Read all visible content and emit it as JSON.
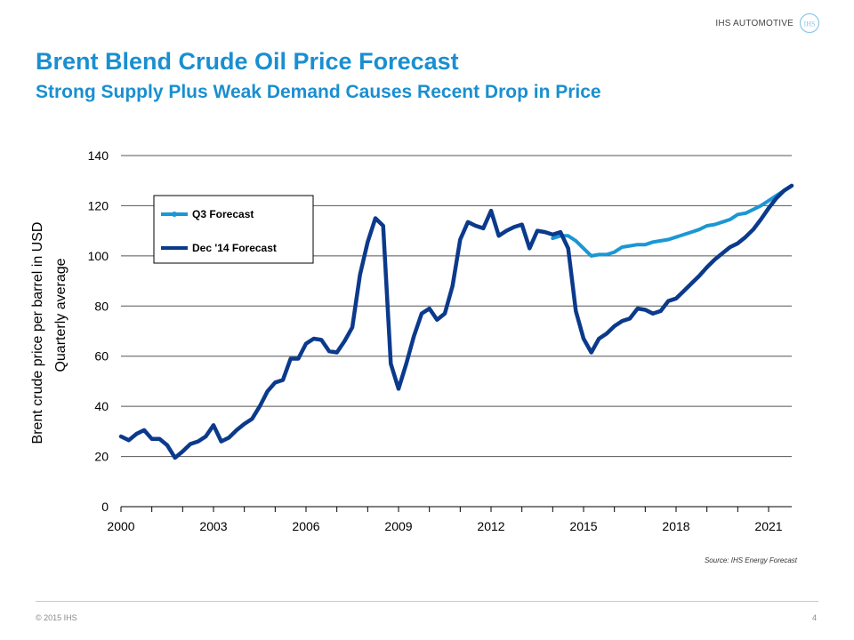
{
  "header": {
    "brand": "IHS AUTOMOTIVE",
    "logo_text": "IHS",
    "title": "Brent Blend Crude Oil Price Forecast",
    "subtitle": "Strong Supply Plus Weak Demand Causes Recent Drop in Price"
  },
  "footer": {
    "copyright": "© 2015 IHS",
    "page_number": "4",
    "source": "Source: IHS Energy Forecast"
  },
  "colors": {
    "brand_blue": "#1a8fd0",
    "q3_series": "#1b97d4",
    "dec14_series": "#0b3a8c",
    "gridline": "#555555"
  },
  "chart_data": {
    "type": "line",
    "title": "",
    "xlabel": "",
    "ylabel": [
      "Brent crude price per barrel in USD",
      "Quarterly average"
    ],
    "xlim": [
      2000,
      2021.75
    ],
    "ylim": [
      0,
      140
    ],
    "y_ticks": [
      0,
      20,
      40,
      60,
      80,
      100,
      120,
      140
    ],
    "x_tick_labels": [
      "2000",
      "2003",
      "2006",
      "2009",
      "2012",
      "2015",
      "2018",
      "2021"
    ],
    "grid": true,
    "legend_position": "top-left",
    "series": [
      {
        "name": "Q3 Forecast",
        "color": "#1b97d4",
        "x": [
          2014.0,
          2014.25,
          2014.5,
          2014.75,
          2015.0,
          2015.25,
          2015.5,
          2015.75,
          2016.0,
          2016.25,
          2016.5,
          2016.75,
          2017.0,
          2017.25,
          2017.5,
          2017.75,
          2018.0,
          2018.25,
          2018.5,
          2018.75,
          2019.0,
          2019.25,
          2019.5,
          2019.75,
          2020.0,
          2020.25,
          2020.5,
          2020.75,
          2021.0,
          2021.25,
          2021.5,
          2021.75
        ],
        "y": [
          107,
          108,
          108,
          106,
          103,
          100,
          100.5,
          100.5,
          101.5,
          103.5,
          104,
          104.5,
          104.5,
          105.5,
          106,
          106.5,
          107.5,
          108.5,
          109.5,
          110.5,
          112,
          112.5,
          113.5,
          114.5,
          116.5,
          117,
          118.5,
          120,
          122,
          124,
          126,
          128
        ]
      },
      {
        "name": "Dec '14 Forecast",
        "color": "#0b3a8c",
        "x": [
          2000.0,
          2000.25,
          2000.5,
          2000.75,
          2001.0,
          2001.25,
          2001.5,
          2001.75,
          2002.0,
          2002.25,
          2002.5,
          2002.75,
          2003.0,
          2003.25,
          2003.5,
          2003.75,
          2004.0,
          2004.25,
          2004.5,
          2004.75,
          2005.0,
          2005.25,
          2005.5,
          2005.75,
          2006.0,
          2006.25,
          2006.5,
          2006.75,
          2007.0,
          2007.25,
          2007.5,
          2007.75,
          2008.0,
          2008.25,
          2008.5,
          2008.75,
          2009.0,
          2009.25,
          2009.5,
          2009.75,
          2010.0,
          2010.25,
          2010.5,
          2010.75,
          2011.0,
          2011.25,
          2011.5,
          2011.75,
          2012.0,
          2012.25,
          2012.5,
          2012.75,
          2013.0,
          2013.25,
          2013.5,
          2013.75,
          2014.0,
          2014.25,
          2014.5,
          2014.75,
          2015.0,
          2015.25,
          2015.5,
          2015.75,
          2016.0,
          2016.25,
          2016.5,
          2016.75,
          2017.0,
          2017.25,
          2017.5,
          2017.75,
          2018.0,
          2018.25,
          2018.5,
          2018.75,
          2019.0,
          2019.25,
          2019.5,
          2019.75,
          2020.0,
          2020.25,
          2020.5,
          2020.75,
          2021.0,
          2021.25,
          2021.5,
          2021.75
        ],
        "y": [
          28,
          26.5,
          29,
          30.5,
          27,
          27,
          24.5,
          19.5,
          22,
          25,
          26,
          28,
          32.5,
          26,
          27.5,
          30.5,
          33,
          35,
          40,
          46,
          49.5,
          50.5,
          59,
          59,
          65,
          67,
          66.5,
          62,
          61.5,
          66,
          71.5,
          92.5,
          105.5,
          115,
          112,
          57,
          47,
          57,
          68,
          77,
          79,
          74.5,
          77,
          88,
          106.5,
          113.5,
          112,
          111,
          118,
          108,
          110,
          111.5,
          112.5,
          103,
          110,
          109.5,
          108.5,
          109.5,
          103,
          78,
          67,
          61.5,
          67,
          69,
          72,
          74,
          75,
          79,
          78.5,
          77,
          78,
          82,
          83,
          86,
          89,
          92,
          95.5,
          98.5,
          101,
          103.5,
          105,
          107.5,
          110.5,
          114.5,
          119,
          123,
          126,
          128
        ]
      }
    ]
  }
}
